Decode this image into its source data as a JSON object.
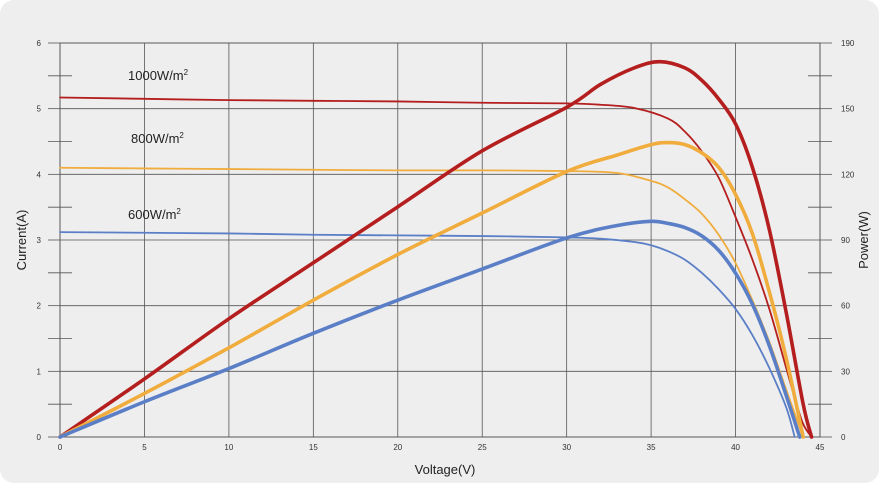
{
  "chart_data": {
    "type": "line",
    "title": "",
    "xlabel": "Voltage(V)",
    "ylabel_left": "Current(A)",
    "ylabel_right": "Power(W)",
    "xlim": [
      0,
      45
    ],
    "ylim_left": [
      0,
      6
    ],
    "ylim_right": [
      0,
      190
    ],
    "x_ticks": [
      "0",
      "5",
      "10",
      "15",
      "20",
      "25",
      "30",
      "35",
      "40",
      "45"
    ],
    "y_left_ticks": [
      "0",
      "1",
      "2",
      "3",
      "4",
      "5",
      "6"
    ],
    "y_right_ticks": [
      "0",
      "30",
      "60",
      "90",
      "120",
      "150",
      "190"
    ],
    "grid": true,
    "colors": {
      "irr1000": "#b41e1e",
      "irr800": "#f0ad3e",
      "irr600": "#5b7fc7",
      "background": "#eeeeee",
      "grid": "#555555"
    },
    "irradiance_labels": [
      {
        "base": "1000W/m",
        "sup": "2",
        "color_key": "irr1000"
      },
      {
        "base": "800W/m",
        "sup": "2",
        "color_key": "irr800"
      },
      {
        "base": "600W/m",
        "sup": "2",
        "color_key": "irr600"
      }
    ],
    "series": [
      {
        "kind": "current",
        "color_key": "irr1000",
        "axis": "left",
        "x": [
          0,
          5,
          10,
          15,
          20,
          25,
          30,
          32,
          34,
          36,
          37,
          38,
          39,
          40,
          41,
          42,
          43,
          43.5,
          44,
          44.5
        ],
        "y": [
          5.17,
          5.15,
          5.13,
          5.12,
          5.11,
          5.09,
          5.08,
          5.06,
          5.01,
          4.85,
          4.65,
          4.35,
          3.95,
          3.35,
          2.7,
          1.95,
          1.05,
          0.6,
          0.2,
          0
        ]
      },
      {
        "kind": "power",
        "color_key": "irr1000",
        "axis": "right",
        "x": [
          0,
          5,
          10,
          15,
          20,
          25,
          30,
          32,
          34,
          35.5,
          37,
          38,
          39,
          40,
          41,
          42,
          43,
          44,
          44.5
        ],
        "y": [
          0,
          28,
          57,
          84,
          111,
          138,
          159,
          170,
          178,
          181,
          178,
          172,
          163,
          151,
          130,
          100,
          60,
          16,
          0
        ]
      },
      {
        "kind": "current",
        "color_key": "irr800",
        "axis": "left",
        "x": [
          0,
          5,
          10,
          15,
          20,
          25,
          30,
          33,
          35,
          36,
          37,
          38,
          39,
          40,
          41,
          42,
          43,
          44
        ],
        "y": [
          4.1,
          4.09,
          4.08,
          4.07,
          4.06,
          4.06,
          4.05,
          4.02,
          3.9,
          3.8,
          3.62,
          3.4,
          3.08,
          2.65,
          2.08,
          1.45,
          0.72,
          0
        ]
      },
      {
        "kind": "power",
        "color_key": "irr800",
        "axis": "right",
        "x": [
          0,
          5,
          10,
          15,
          20,
          25,
          30,
          33,
          35,
          36,
          37,
          38,
          39,
          40,
          41,
          42,
          43,
          44
        ],
        "y": [
          0,
          21,
          43,
          66,
          88,
          108,
          128,
          136,
          141,
          142,
          141,
          137,
          130,
          117,
          98,
          70,
          38,
          0
        ]
      },
      {
        "kind": "current",
        "color_key": "irr600",
        "axis": "left",
        "x": [
          0,
          5,
          10,
          15,
          20,
          25,
          30,
          32,
          34,
          35,
          36,
          37,
          38,
          39,
          40,
          41,
          42,
          43,
          43.5
        ],
        "y": [
          3.12,
          3.11,
          3.1,
          3.08,
          3.07,
          3.06,
          3.04,
          3.02,
          2.97,
          2.92,
          2.83,
          2.7,
          2.5,
          2.25,
          1.95,
          1.55,
          1.05,
          0.45,
          0
        ]
      },
      {
        "kind": "power",
        "color_key": "irr600",
        "axis": "right",
        "x": [
          0,
          5,
          10,
          15,
          20,
          25,
          30,
          33,
          35,
          36,
          37,
          38,
          39,
          40,
          41,
          42,
          43,
          43.8
        ],
        "y": [
          0,
          17,
          33,
          50,
          66,
          81,
          96,
          102,
          104,
          103,
          101,
          97,
          90,
          79,
          64,
          44,
          20,
          0
        ]
      }
    ]
  }
}
